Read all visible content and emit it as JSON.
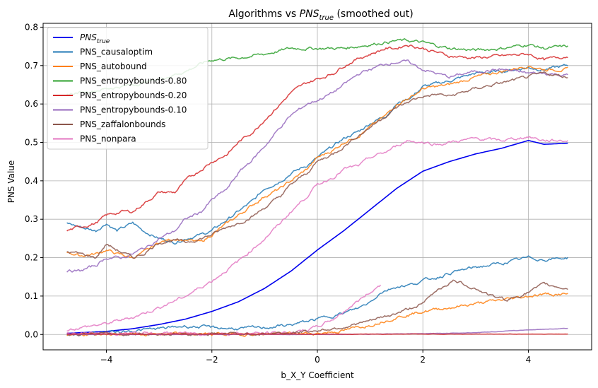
{
  "chart_data": {
    "type": "line",
    "title_main": "Algorithms vs ",
    "title_sym": "PNS",
    "title_sub": "true",
    "title_tail": " (smoothed out)",
    "xlabel": "b_X_Y Coefficient",
    "ylabel": "PNS Value",
    "xlim": [
      -5.2,
      5.2
    ],
    "ylim": [
      -0.04,
      0.81
    ],
    "xticks": [
      -4,
      -2,
      0,
      2,
      4
    ],
    "xtick_labels": [
      "−4",
      "−2",
      "0",
      "2",
      "4"
    ],
    "yticks": [
      0.0,
      0.1,
      0.2,
      0.3,
      0.4,
      0.5,
      0.6,
      0.7,
      0.8
    ],
    "ytick_labels": [
      "0.0",
      "0.1",
      "0.2",
      "0.3",
      "0.4",
      "0.5",
      "0.6",
      "0.7",
      "0.8"
    ],
    "grid": true,
    "legend_position": "top-left",
    "series": [
      {
        "name": "PNS",
        "name_sub": "true",
        "color": "#0000ee",
        "width": 1.6,
        "x": [
          -4.75,
          -4.0,
          -3.5,
          -3.0,
          -2.5,
          -2.0,
          -1.5,
          -1.0,
          -0.5,
          0.0,
          0.5,
          1.0,
          1.5,
          2.0,
          2.5,
          3.0,
          3.5,
          4.0,
          4.3,
          4.75
        ],
        "y": [
          0.003,
          0.008,
          0.015,
          0.026,
          0.04,
          0.06,
          0.085,
          0.12,
          0.165,
          0.22,
          0.27,
          0.325,
          0.38,
          0.425,
          0.45,
          0.47,
          0.485,
          0.505,
          0.495,
          0.498
        ]
      },
      {
        "name": "PNS_causaloptim",
        "color": "#1f77b4",
        "width": 1.5,
        "x": [
          -4.75,
          -4.5,
          -4.2,
          -4.0,
          -3.8,
          -3.5,
          -3.3,
          -3.0,
          -2.7,
          -2.5,
          -2.2,
          -2.0,
          -1.7,
          -1.5,
          -1.2,
          -1.0,
          -0.7,
          -0.5,
          -0.2,
          0.0,
          0.3,
          0.5,
          0.8,
          1.0,
          1.3,
          1.5,
          1.8,
          2.0,
          2.5,
          3.0,
          3.5,
          4.0,
          4.3,
          4.75
        ],
        "y": [
          0.29,
          0.28,
          0.27,
          0.29,
          0.27,
          0.29,
          0.27,
          0.25,
          0.24,
          0.25,
          0.26,
          0.27,
          0.3,
          0.32,
          0.35,
          0.38,
          0.4,
          0.42,
          0.44,
          0.46,
          0.49,
          0.51,
          0.53,
          0.55,
          0.57,
          0.6,
          0.62,
          0.645,
          0.66,
          0.68,
          0.685,
          0.695,
          0.69,
          0.7
        ]
      },
      {
        "name": "PNS_autobound",
        "color": "#ff7f0e",
        "width": 1.5,
        "x": [
          -4.75,
          -4.5,
          -4.2,
          -4.0,
          -3.8,
          -3.5,
          -3.2,
          -3.0,
          -2.7,
          -2.5,
          -2.2,
          -2.0,
          -1.7,
          -1.5,
          -1.2,
          -1.0,
          -0.7,
          -0.5,
          -0.2,
          0.0,
          0.3,
          0.5,
          0.8,
          1.0,
          1.3,
          1.5,
          1.8,
          2.0,
          2.5,
          3.0,
          3.5,
          4.0,
          4.3,
          4.75
        ],
        "y": [
          0.215,
          0.205,
          0.21,
          0.22,
          0.21,
          0.2,
          0.22,
          0.24,
          0.25,
          0.245,
          0.24,
          0.26,
          0.29,
          0.31,
          0.34,
          0.36,
          0.38,
          0.4,
          0.43,
          0.46,
          0.48,
          0.5,
          0.52,
          0.54,
          0.57,
          0.6,
          0.62,
          0.64,
          0.65,
          0.67,
          0.685,
          0.7,
          0.69,
          0.69
        ]
      },
      {
        "name": "PNS_entropybounds-0.80",
        "color": "#2ca02c",
        "width": 1.5,
        "x": [
          -4.75,
          -4.5,
          -4.0,
          -3.5,
          -3.0,
          -2.5,
          -2.2,
          -2.0,
          -1.5,
          -1.0,
          -0.5,
          0.0,
          0.5,
          1.0,
          1.5,
          1.7,
          2.0,
          2.5,
          3.0,
          3.5,
          4.0,
          4.3,
          4.75
        ],
        "y": [
          0.625,
          0.63,
          0.64,
          0.65,
          0.665,
          0.685,
          0.705,
          0.715,
          0.72,
          0.73,
          0.745,
          0.745,
          0.745,
          0.755,
          0.765,
          0.765,
          0.76,
          0.745,
          0.74,
          0.745,
          0.755,
          0.745,
          0.75
        ]
      },
      {
        "name": "PNS_entropybounds-0.20",
        "color": "#d62728",
        "width": 1.5,
        "x": [
          -4.75,
          -4.5,
          -4.2,
          -4.0,
          -3.7,
          -3.5,
          -3.2,
          -3.0,
          -2.7,
          -2.5,
          -2.2,
          -2.0,
          -1.7,
          -1.5,
          -1.2,
          -1.0,
          -0.7,
          -0.5,
          -0.2,
          0.0,
          0.3,
          0.5,
          0.8,
          1.0,
          1.3,
          1.5,
          1.7,
          2.0,
          2.5,
          3.0,
          3.5,
          4.0,
          4.3,
          4.75
        ],
        "y": [
          0.27,
          0.28,
          0.29,
          0.31,
          0.32,
          0.32,
          0.35,
          0.37,
          0.37,
          0.4,
          0.43,
          0.45,
          0.47,
          0.5,
          0.53,
          0.56,
          0.6,
          0.63,
          0.655,
          0.665,
          0.68,
          0.7,
          0.72,
          0.73,
          0.745,
          0.745,
          0.755,
          0.745,
          0.725,
          0.72,
          0.725,
          0.73,
          0.715,
          0.725
        ]
      },
      {
        "name": "PNS_entropybounds-0.10",
        "color": "#9467bd",
        "width": 1.5,
        "x": [
          -4.75,
          -4.5,
          -4.2,
          -4.0,
          -3.7,
          -3.5,
          -3.2,
          -3.0,
          -2.7,
          -2.5,
          -2.2,
          -2.0,
          -1.7,
          -1.5,
          -1.2,
          -1.0,
          -0.7,
          -0.5,
          -0.2,
          0.0,
          0.3,
          0.5,
          0.8,
          1.0,
          1.3,
          1.5,
          1.7,
          2.0,
          2.5,
          3.0,
          3.5,
          4.0,
          4.3,
          4.75
        ],
        "y": [
          0.165,
          0.165,
          0.18,
          0.2,
          0.2,
          0.21,
          0.23,
          0.25,
          0.27,
          0.3,
          0.32,
          0.35,
          0.38,
          0.42,
          0.46,
          0.49,
          0.54,
          0.57,
          0.6,
          0.61,
          0.63,
          0.65,
          0.68,
          0.69,
          0.705,
          0.71,
          0.71,
          0.69,
          0.67,
          0.685,
          0.69,
          0.68,
          0.68,
          0.675
        ]
      },
      {
        "name": "PNS_zaffalonbounds",
        "color": "#8c564b",
        "width": 1.5,
        "x": [
          -4.75,
          -4.5,
          -4.2,
          -4.0,
          -3.8,
          -3.5,
          -3.3,
          -3.0,
          -2.7,
          -2.5,
          -2.2,
          -2.0,
          -1.7,
          -1.5,
          -1.2,
          -1.0,
          -0.7,
          -0.5,
          -0.2,
          0.0,
          0.3,
          0.5,
          0.8,
          1.0,
          1.3,
          1.5,
          1.8,
          2.0,
          2.3,
          2.5,
          3.0,
          3.5,
          4.0,
          4.3,
          4.75
        ],
        "y": [
          0.215,
          0.21,
          0.2,
          0.235,
          0.22,
          0.2,
          0.21,
          0.24,
          0.245,
          0.24,
          0.25,
          0.26,
          0.28,
          0.29,
          0.31,
          0.33,
          0.36,
          0.39,
          0.42,
          0.45,
          0.47,
          0.49,
          0.52,
          0.54,
          0.57,
          0.59,
          0.61,
          0.62,
          0.625,
          0.62,
          0.64,
          0.655,
          0.67,
          0.68,
          0.67
        ]
      },
      {
        "name": "PNS_nonpara",
        "color": "#e377c2",
        "width": 1.5,
        "x": [
          -4.75,
          -4.5,
          -4.0,
          -3.5,
          -3.0,
          -2.5,
          -2.0,
          -1.5,
          -1.0,
          -0.7,
          -0.5,
          -0.2,
          0.0,
          0.3,
          0.5,
          0.8,
          1.0,
          1.3,
          1.5,
          1.7,
          2.0,
          2.3,
          2.5,
          3.0,
          3.5,
          4.0,
          4.3,
          4.75
        ],
        "y": [
          0.012,
          0.018,
          0.028,
          0.045,
          0.07,
          0.1,
          0.14,
          0.19,
          0.25,
          0.29,
          0.32,
          0.36,
          0.39,
          0.41,
          0.43,
          0.44,
          0.46,
          0.475,
          0.49,
          0.505,
          0.5,
          0.495,
          0.5,
          0.51,
          0.505,
          0.515,
          0.505,
          0.505
        ]
      },
      {
        "name": "",
        "color": "#1f77b4",
        "width": 1.5,
        "x": [
          -4.75,
          -3.5,
          -3.0,
          -2.5,
          -2.0,
          -1.5,
          -1.0,
          -0.5,
          0.0,
          0.3,
          0.5,
          0.8,
          1.0,
          1.2,
          1.5,
          1.8,
          2.0,
          2.3,
          2.5,
          3.0,
          3.5,
          4.0,
          4.3,
          4.75
        ],
        "y": [
          0.0,
          0.01,
          0.015,
          0.022,
          0.018,
          0.015,
          0.018,
          0.025,
          0.04,
          0.05,
          0.055,
          0.07,
          0.085,
          0.11,
          0.125,
          0.13,
          0.14,
          0.15,
          0.16,
          0.175,
          0.185,
          0.2,
          0.195,
          0.2
        ]
      },
      {
        "name": "",
        "color": "#ff7f0e",
        "width": 1.5,
        "x": [
          -4.75,
          -2.0,
          -1.0,
          0.0,
          0.5,
          1.0,
          1.5,
          2.0,
          2.5,
          3.0,
          3.5,
          4.0,
          4.3,
          4.75
        ],
        "y": [
          0.0,
          0.001,
          0.001,
          0.003,
          0.01,
          0.025,
          0.045,
          0.06,
          0.07,
          0.08,
          0.09,
          0.1,
          0.105,
          0.105
        ]
      },
      {
        "name": "",
        "color": "#e377c2",
        "width": 1.5,
        "x": [
          -4.75,
          -1.0,
          -0.5,
          -0.2,
          0.0,
          0.3,
          0.5,
          0.8,
          1.0,
          1.2
        ],
        "y": [
          0.003,
          0.003,
          0.005,
          0.012,
          0.02,
          0.04,
          0.06,
          0.09,
          0.11,
          0.13
        ]
      },
      {
        "name": "",
        "color": "#8c564b",
        "width": 1.5,
        "x": [
          -4.75,
          -1.0,
          -0.5,
          0.0,
          0.5,
          1.0,
          1.5,
          2.0,
          2.3,
          2.6,
          3.0,
          3.3,
          3.6,
          4.0,
          4.3,
          4.75
        ],
        "y": [
          0.001,
          0.002,
          0.005,
          0.01,
          0.02,
          0.035,
          0.055,
          0.08,
          0.12,
          0.14,
          0.12,
          0.1,
          0.09,
          0.11,
          0.13,
          0.12
        ]
      },
      {
        "name": "",
        "color": "#9467bd",
        "width": 1.5,
        "x": [
          -4.75,
          0.0,
          2.0,
          3.0,
          3.5,
          4.0,
          4.75
        ],
        "y": [
          0.0,
          0.0,
          0.002,
          0.005,
          0.008,
          0.012,
          0.016
        ]
      },
      {
        "name": "",
        "color": "#d62728",
        "width": 1.5,
        "x": [
          -4.75,
          4.75
        ],
        "y": [
          0.001,
          0.001
        ]
      }
    ]
  }
}
